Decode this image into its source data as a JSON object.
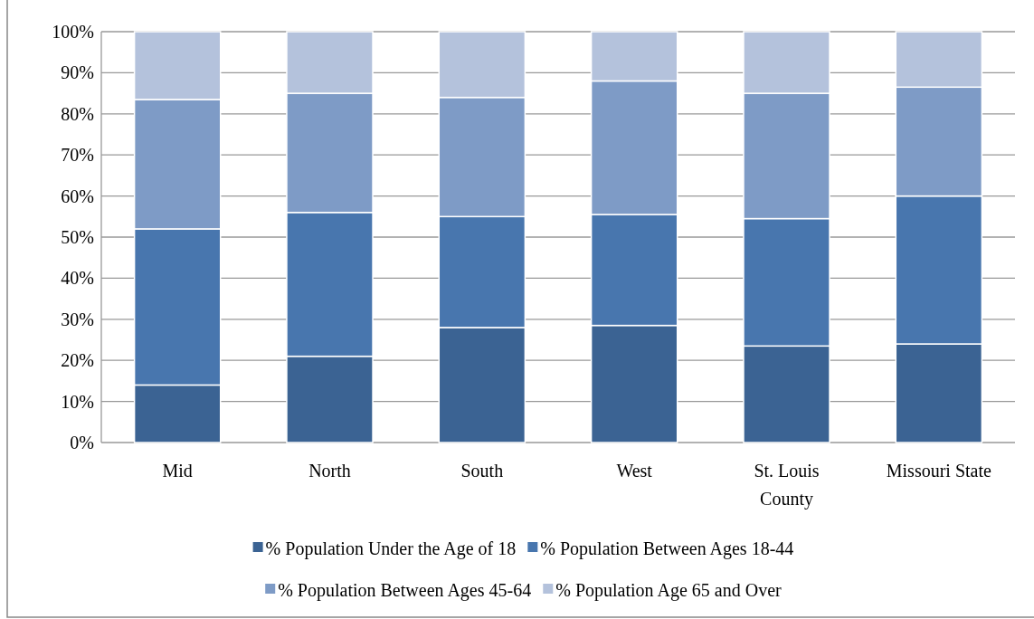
{
  "chart_data": {
    "type": "bar",
    "stacked": true,
    "categories": [
      "Mid",
      "North",
      "South",
      "West",
      "St. Louis County",
      "Missouri State"
    ],
    "series": [
      {
        "name": "% Population Under the Age of 18",
        "color": "#3b6393",
        "values": [
          14,
          21,
          28,
          28.5,
          23.5,
          24
        ]
      },
      {
        "name": "% Population Between Ages 18-44",
        "color": "#4876ae",
        "values": [
          38,
          35,
          27,
          27,
          31,
          36
        ]
      },
      {
        "name": "% Population Between Ages 45-64",
        "color": "#7e9bc6",
        "values": [
          31.5,
          29,
          29,
          32.5,
          30.5,
          26.5
        ]
      },
      {
        "name": "% Population Age 65 and Over",
        "color": "#b4c2dc",
        "values": [
          16.5,
          15,
          16,
          12,
          15,
          13.5
        ]
      }
    ],
    "ylim": [
      0,
      100
    ],
    "yticks": [
      {
        "value": 0,
        "label": "0%"
      },
      {
        "value": 10,
        "label": "10%"
      },
      {
        "value": 20,
        "label": "20%"
      },
      {
        "value": 30,
        "label": "30%"
      },
      {
        "value": 40,
        "label": "40%"
      },
      {
        "value": 50,
        "label": "50%"
      },
      {
        "value": 60,
        "label": "60%"
      },
      {
        "value": 70,
        "label": "70%"
      },
      {
        "value": 80,
        "label": "80%"
      },
      {
        "value": 90,
        "label": "90%"
      },
      {
        "value": 100,
        "label": "100%"
      }
    ],
    "grid": "y",
    "legend": "bottom"
  }
}
